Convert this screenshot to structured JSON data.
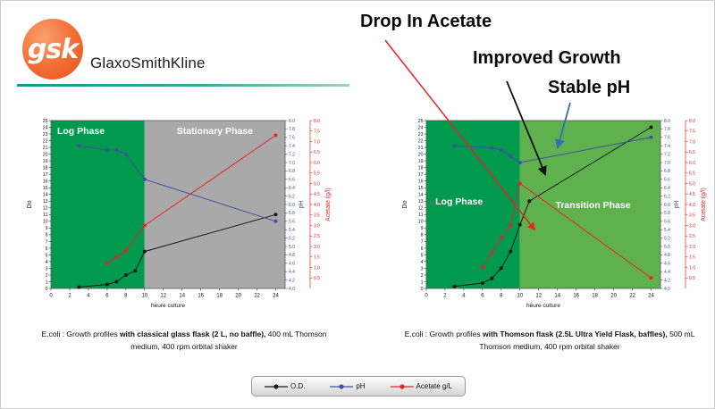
{
  "header": {
    "logo_text": "gsk",
    "brand": "GlaxoSmithKline"
  },
  "annotations": {
    "drop_in_acetate": "Drop In Acetate",
    "improved_growth": "Improved Growth",
    "stable_ph": "Stable pH"
  },
  "legend": {
    "items": [
      {
        "label": "O.D.",
        "color": "#1a1a1a"
      },
      {
        "label": "pH",
        "color": "#3f51a3"
      },
      {
        "label": "Acetate g/L",
        "color": "#e8232a"
      }
    ]
  },
  "colors": {
    "log_phase_green": "#009a4e",
    "stationary_gray": "#a9a9a9",
    "transition_green": "#5eb14d",
    "od_black": "#1a1a1a",
    "ph_blue": "#3f51a3",
    "acetate_red": "#e8232a",
    "gsk_orange": "#f26b32",
    "teal_line": "#0f9b8e",
    "arrow_red": "#e8232a",
    "arrow_black": "#111111",
    "arrow_blue": "#2f6db5"
  },
  "chart_data": [
    {
      "type": "line",
      "xlabel": "heure culture",
      "x_axis": {
        "min": 0,
        "max": 25,
        "ticks": [
          0,
          2,
          4,
          6,
          8,
          10,
          12,
          14,
          16,
          18,
          20,
          22,
          24
        ]
      },
      "od_axis": {
        "label": "Do",
        "min": 0,
        "max": 25,
        "step": 1
      },
      "ph_axis": {
        "label": "pH",
        "min": 4.0,
        "max": 8.0,
        "step": 0.2
      },
      "acetate_axis": {
        "label": "Acetate (g/l)",
        "min": 0,
        "max": 8.0,
        "step": 0.5
      },
      "phases": [
        {
          "label": "Log Phase",
          "from": 0,
          "to": 10,
          "color": "#009a4e",
          "label_x": 3.2,
          "label_fy": 0.08
        },
        {
          "label": "Stationary Phase",
          "from": 10,
          "to": 25,
          "color": "#a9a9a9",
          "label_x": 17.5,
          "label_fy": 0.08
        }
      ],
      "series": [
        {
          "name": "O.D.",
          "axis": "od",
          "color": "#1a1a1a",
          "points": [
            [
              3,
              0.2
            ],
            [
              6,
              0.6
            ],
            [
              7,
              1.0
            ],
            [
              8,
              2.0
            ],
            [
              9,
              2.6
            ],
            [
              10,
              5.5
            ],
            [
              24,
              11.0
            ]
          ]
        },
        {
          "name": "pH",
          "axis": "ph",
          "color": "#3f51a3",
          "points": [
            [
              3,
              7.4
            ],
            [
              6,
              7.3
            ],
            [
              7,
              7.3
            ],
            [
              8,
              7.2
            ],
            [
              10,
              6.6
            ],
            [
              24,
              5.6
            ]
          ]
        },
        {
          "name": "Acetate g/L",
          "axis": "acetate",
          "color": "#e8232a",
          "points": [
            [
              6,
              1.2
            ],
            [
              7,
              1.5
            ],
            [
              8,
              1.8
            ],
            [
              10,
              3.0
            ],
            [
              24,
              7.3
            ]
          ]
        }
      ],
      "caption": {
        "prefix": "E.coli : Growth profiles ",
        "bold": "with classical glass flask (2 L,  no baffle),",
        "suffix": " 400 mL Thomson medium, 400 rpm orbital shaker"
      }
    },
    {
      "type": "line",
      "xlabel": "heure culture",
      "x_axis": {
        "min": 0,
        "max": 25,
        "ticks": [
          0,
          2,
          4,
          6,
          8,
          10,
          12,
          14,
          16,
          18,
          20,
          22,
          24
        ]
      },
      "od_axis": {
        "label": "Do",
        "min": 0,
        "max": 25,
        "step": 1
      },
      "ph_axis": {
        "label": "pH",
        "min": 4.0,
        "max": 8.0,
        "step": 0.2
      },
      "acetate_axis": {
        "label": "Acetate (g/l)",
        "min": 0,
        "max": 8.0,
        "step": 0.5
      },
      "phases": [
        {
          "label": "Log Phase",
          "from": 0,
          "to": 10,
          "color": "#009a4e",
          "label_x": 3.5,
          "label_fy": 0.5
        },
        {
          "label": "Transition Phase",
          "from": 10,
          "to": 25,
          "color": "#5eb14d",
          "label_x": 17.8,
          "label_fy": 0.52
        }
      ],
      "series": [
        {
          "name": "O.D.",
          "axis": "od",
          "color": "#1a1a1a",
          "points": [
            [
              3,
              0.3
            ],
            [
              6,
              0.8
            ],
            [
              7,
              1.5
            ],
            [
              8,
              3.0
            ],
            [
              9,
              5.5
            ],
            [
              10,
              9.5
            ],
            [
              11,
              13.0
            ],
            [
              24,
              24.0
            ]
          ]
        },
        {
          "name": "pH",
          "axis": "ph",
          "color": "#3f51a3",
          "points": [
            [
              3,
              7.4
            ],
            [
              7,
              7.35
            ],
            [
              8,
              7.3
            ],
            [
              9,
              7.15
            ],
            [
              10,
              7.0
            ],
            [
              24,
              7.6
            ]
          ]
        },
        {
          "name": "Acetate g/L",
          "axis": "acetate",
          "color": "#e8232a",
          "points": [
            [
              6,
              1.0
            ],
            [
              7,
              1.7
            ],
            [
              8,
              2.4
            ],
            [
              9,
              3.0
            ],
            [
              10,
              5.0
            ],
            [
              24,
              0.5
            ]
          ]
        }
      ],
      "caption": {
        "prefix": "E.coli : Growth profiles ",
        "bold": "with Thomson flask (2.5L Ultra Yield Flask, baffles),",
        "suffix": " 500 mL Thomson medium, 400 rpm orbital shaker"
      }
    }
  ]
}
